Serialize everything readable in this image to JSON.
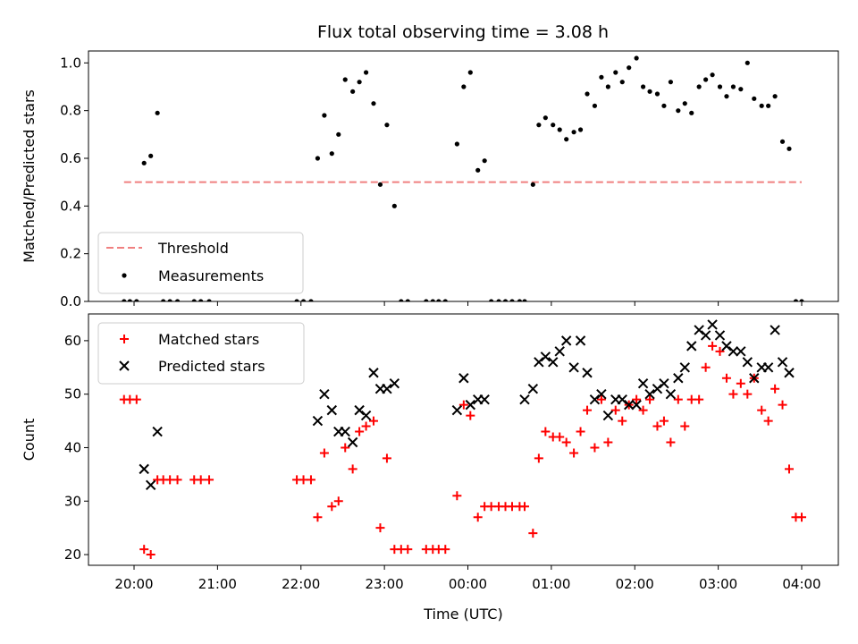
{
  "title": "Flux total observing time = 3.08 h",
  "colors": {
    "threshold": "#f08080",
    "measurement": "#000000",
    "matched": "#ff0000",
    "predicted": "#000000",
    "shade": "#add8e6"
  },
  "chart_data": [
    {
      "type": "scatter",
      "ylabel": "Matched/Predicted stars",
      "ylim": [
        0,
        1.05
      ],
      "yticks": [
        "0.0",
        "0.2",
        "0.4",
        "0.6",
        "0.8",
        "1.0"
      ],
      "ytick_values": [
        0,
        0.2,
        0.4,
        0.6,
        0.8,
        1.0
      ],
      "xlim": [
        -0.5,
        4.45
      ],
      "shaded_interval": [
        4.75,
        8.87
      ],
      "threshold": {
        "value": 0.5,
        "x_range": [
          19.88,
          4.0
        ],
        "style": "dashed"
      },
      "legend": {
        "placement": "lower-left",
        "entries": [
          "Threshold",
          "Measurements"
        ]
      },
      "series": [
        {
          "name": "Measurements",
          "marker": "dot",
          "x": [
            19.88,
            19.95,
            20.03,
            20.12,
            20.2,
            20.28,
            20.35,
            20.43,
            20.52,
            20.72,
            20.8,
            20.9,
            21.95,
            22.03,
            22.12,
            22.2,
            22.28,
            22.37,
            22.45,
            22.53,
            22.62,
            22.7,
            22.78,
            22.87,
            22.95,
            23.03,
            23.12,
            23.2,
            23.28,
            23.5,
            23.58,
            23.65,
            23.73,
            23.87,
            23.95,
            24.03,
            24.12,
            24.2,
            24.28,
            24.37,
            24.45,
            24.53,
            24.62,
            24.68,
            24.78,
            24.85,
            24.93,
            25.02,
            25.1,
            25.18,
            25.27,
            25.35,
            25.43,
            25.52,
            25.6,
            25.68,
            25.77,
            25.85,
            25.93,
            26.02,
            26.1,
            26.18,
            26.27,
            26.35,
            26.43,
            26.52,
            26.6,
            26.68,
            26.77,
            26.85,
            26.93,
            27.02,
            27.1,
            27.18,
            27.27,
            27.35,
            27.43,
            27.52,
            27.6,
            27.68,
            27.77,
            27.85,
            27.93,
            28.0
          ],
          "y": [
            0,
            0,
            0,
            0.58,
            0.61,
            0.79,
            0,
            0,
            0,
            0,
            0,
            0,
            0,
            0,
            0,
            0.6,
            0.78,
            0.62,
            0.7,
            0.93,
            0.88,
            0.92,
            0.96,
            0.83,
            0.49,
            0.74,
            0.4,
            0,
            0,
            0,
            0,
            0,
            0,
            0.66,
            0.9,
            0.96,
            0.55,
            0.59,
            0,
            0,
            0,
            0,
            0,
            0,
            0.49,
            0.74,
            0.77,
            0.74,
            0.72,
            0.68,
            0.71,
            0.72,
            0.87,
            0.82,
            0.94,
            0.9,
            0.96,
            0.92,
            0.98,
            1.02,
            0.9,
            0.88,
            0.87,
            0.82,
            0.92,
            0.8,
            0.83,
            0.79,
            0.9,
            0.93,
            0.95,
            0.9,
            0.86,
            0.9,
            0.89,
            1.0,
            0.85,
            0.82,
            0.82,
            0.86,
            0.67,
            0.64,
            0,
            0
          ]
        }
      ]
    },
    {
      "type": "scatter",
      "ylabel": "Count",
      "xlabel": "Time (UTC)",
      "ylim": [
        18,
        65
      ],
      "yticks": [
        "20",
        "30",
        "40",
        "50",
        "60"
      ],
      "ytick_values": [
        20,
        30,
        40,
        50,
        60
      ],
      "xlim": [
        -0.5,
        4.45
      ],
      "xticks": [
        "20:00",
        "21:00",
        "22:00",
        "23:00",
        "00:00",
        "01:00",
        "02:00",
        "03:00",
        "04:00"
      ],
      "xtick_values": [
        20,
        21,
        22,
        23,
        24,
        25,
        26,
        27,
        28
      ],
      "shaded_interval": [
        4.75,
        8.87
      ],
      "legend": {
        "placement": "upper-left",
        "entries": [
          "Matched stars",
          "Predicted stars"
        ]
      },
      "series": [
        {
          "name": "Matched stars",
          "marker": "plus",
          "x": [
            19.88,
            19.95,
            20.03,
            20.12,
            20.2,
            20.28,
            20.35,
            20.43,
            20.52,
            20.72,
            20.8,
            20.9,
            21.95,
            22.03,
            22.12,
            22.2,
            22.28,
            22.37,
            22.45,
            22.53,
            22.62,
            22.7,
            22.78,
            22.87,
            22.95,
            23.03,
            23.12,
            23.2,
            23.28,
            23.5,
            23.58,
            23.65,
            23.73,
            23.87,
            23.95,
            24.03,
            24.12,
            24.2,
            24.28,
            24.37,
            24.45,
            24.53,
            24.62,
            24.68,
            24.78,
            24.85,
            24.93,
            25.02,
            25.1,
            25.18,
            25.27,
            25.35,
            25.43,
            25.52,
            25.6,
            25.68,
            25.77,
            25.85,
            25.93,
            26.02,
            26.1,
            26.18,
            26.27,
            26.35,
            26.43,
            26.52,
            26.6,
            26.68,
            26.77,
            26.85,
            26.93,
            27.02,
            27.1,
            27.18,
            27.27,
            27.35,
            27.43,
            27.52,
            27.6,
            27.68,
            27.77,
            27.85,
            27.93,
            28.0
          ],
          "y": [
            49,
            49,
            49,
            21,
            20,
            34,
            34,
            34,
            34,
            34,
            34,
            34,
            34,
            34,
            34,
            27,
            39,
            29,
            30,
            40,
            36,
            43,
            44,
            45,
            25,
            38,
            21,
            21,
            21,
            21,
            21,
            21,
            21,
            31,
            48,
            46,
            27,
            29,
            29,
            29,
            29,
            29,
            29,
            29,
            24,
            38,
            43,
            42,
            42,
            41,
            39,
            43,
            47,
            40,
            49,
            41,
            47,
            45,
            48,
            49,
            47,
            49,
            44,
            45,
            41,
            49,
            44,
            49,
            49,
            55,
            59,
            58,
            53,
            50,
            52,
            50,
            53,
            47,
            45,
            51,
            48,
            36,
            27,
            27
          ]
        },
        {
          "name": "Predicted stars",
          "marker": "x",
          "x": [
            20.12,
            20.2,
            20.28,
            22.2,
            22.28,
            22.37,
            22.45,
            22.53,
            22.62,
            22.7,
            22.78,
            22.87,
            22.95,
            23.03,
            23.12,
            23.87,
            23.95,
            24.03,
            24.12,
            24.2,
            24.68,
            24.78,
            24.85,
            24.93,
            25.02,
            25.1,
            25.18,
            25.27,
            25.35,
            25.43,
            25.52,
            25.6,
            25.68,
            25.77,
            25.85,
            25.93,
            26.02,
            26.1,
            26.18,
            26.27,
            26.35,
            26.43,
            26.52,
            26.6,
            26.68,
            26.77,
            26.85,
            26.93,
            27.02,
            27.1,
            27.18,
            27.27,
            27.35,
            27.43,
            27.52,
            27.6,
            27.68,
            27.77,
            27.85
          ],
          "y": [
            36,
            33,
            43,
            45,
            50,
            47,
            43,
            43,
            41,
            47,
            46,
            54,
            51,
            51,
            52,
            47,
            53,
            48,
            49,
            49,
            49,
            51,
            56,
            57,
            56,
            58,
            60,
            55,
            60,
            54,
            49,
            50,
            46,
            49,
            49,
            48,
            48,
            52,
            50,
            51,
            52,
            50,
            53,
            55,
            59,
            62,
            61,
            63,
            61,
            59,
            58,
            58,
            56,
            53,
            55,
            55,
            62,
            56,
            54
          ]
        }
      ]
    }
  ]
}
